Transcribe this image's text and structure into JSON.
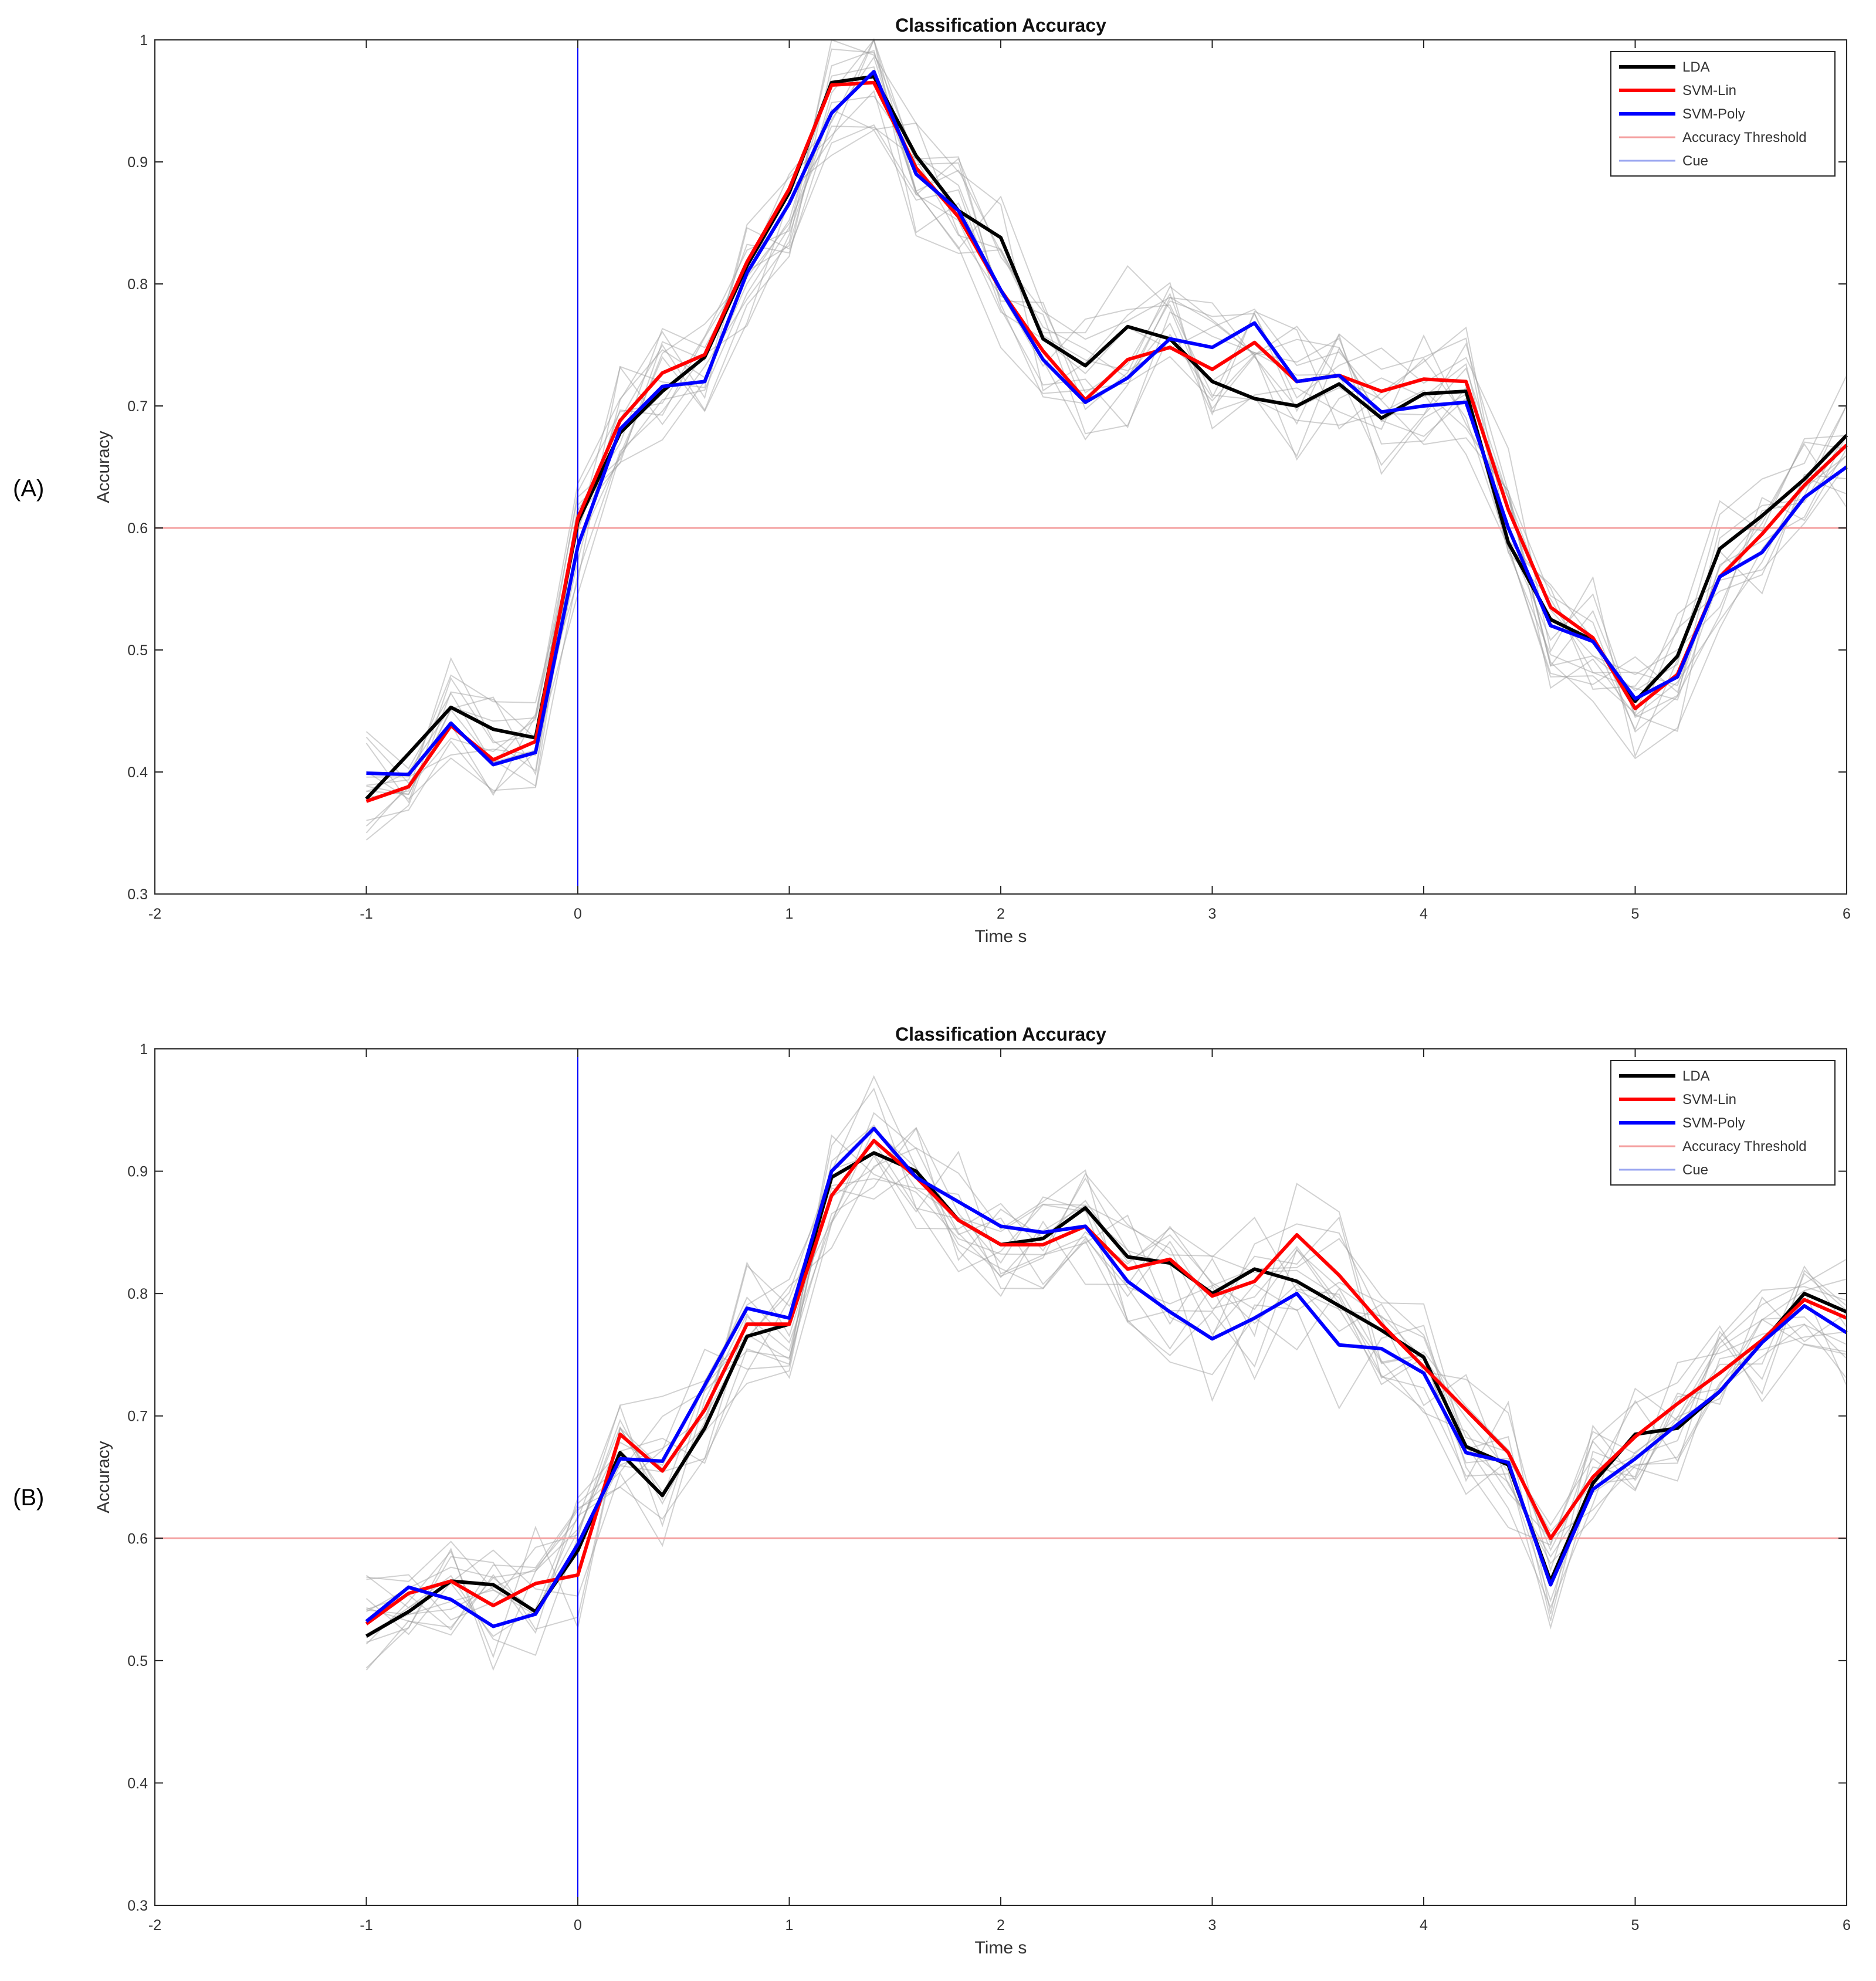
{
  "panels": [
    "(A)",
    "(B)"
  ],
  "chart_data": [
    {
      "type": "line",
      "title": "Classification Accuracy",
      "xlabel": "Time s",
      "ylabel": "Accuracy",
      "xlim": [
        -2,
        6
      ],
      "ylim": [
        0.3,
        1
      ],
      "xticks": [
        "-2",
        "-1",
        "0",
        "1",
        "2",
        "3",
        "4",
        "5",
        "6"
      ],
      "yticks": [
        "0.3",
        "0.4",
        "0.5",
        "0.6",
        "0.7",
        "0.8",
        "0.9",
        "1"
      ],
      "legend_position": "top-right",
      "x": [
        -1,
        -0.8,
        -0.6,
        -0.4,
        -0.2,
        0,
        0.2,
        0.4,
        0.6,
        0.8,
        1.0,
        1.2,
        1.4,
        1.6,
        1.8,
        2.0,
        2.2,
        2.4,
        2.6,
        2.8,
        3.0,
        3.2,
        3.4,
        3.6,
        3.8,
        4.0,
        4.2,
        4.4,
        4.6,
        4.8,
        5.0,
        5.2,
        5.4,
        5.6,
        5.8,
        6.0
      ],
      "series": [
        {
          "name": "LDA",
          "color": "#000000",
          "values": [
            0.378,
            0.415,
            0.453,
            0.435,
            0.428,
            0.605,
            0.678,
            0.712,
            0.74,
            0.815,
            0.875,
            0.965,
            0.97,
            0.905,
            0.86,
            0.838,
            0.755,
            0.733,
            0.765,
            0.755,
            0.72,
            0.706,
            0.7,
            0.718,
            0.69,
            0.71,
            0.712,
            0.588,
            0.525,
            0.508,
            0.458,
            0.495,
            0.583,
            0.61,
            0.64,
            0.676
          ]
        },
        {
          "name": "SVM-Lin",
          "color": "#ff0000",
          "values": [
            0.376,
            0.388,
            0.438,
            0.41,
            0.425,
            0.608,
            0.688,
            0.727,
            0.742,
            0.818,
            0.878,
            0.963,
            0.965,
            0.895,
            0.855,
            0.795,
            0.745,
            0.705,
            0.738,
            0.748,
            0.73,
            0.752,
            0.72,
            0.725,
            0.712,
            0.722,
            0.72,
            0.615,
            0.535,
            0.51,
            0.452,
            0.48,
            0.56,
            0.595,
            0.635,
            0.668
          ]
        },
        {
          "name": "SVM-Poly",
          "color": "#0000ff",
          "values": [
            0.399,
            0.398,
            0.44,
            0.406,
            0.416,
            0.585,
            0.681,
            0.716,
            0.72,
            0.809,
            0.866,
            0.94,
            0.974,
            0.89,
            0.86,
            0.795,
            0.738,
            0.703,
            0.723,
            0.755,
            0.748,
            0.768,
            0.72,
            0.725,
            0.695,
            0.7,
            0.703,
            0.6,
            0.52,
            0.507,
            0.46,
            0.478,
            0.56,
            0.58,
            0.625,
            0.65
          ]
        }
      ],
      "reference_lines": [
        {
          "name": "Accuracy Threshold",
          "orientation": "horizontal",
          "value": 0.6,
          "color": "#f4a0a0"
        },
        {
          "name": "Cue",
          "orientation": "vertical",
          "value": 0,
          "color": "#0000ff"
        }
      ],
      "legend": [
        "LDA",
        "SVM-Lin",
        "SVM-Poly",
        "Accuracy Threshold",
        "Cue"
      ],
      "background_traces": {
        "color": "#9a9a9a",
        "count": 14
      }
    },
    {
      "type": "line",
      "title": "Classification Accuracy",
      "xlabel": "Time s",
      "ylabel": "Accuracy",
      "xlim": [
        -2,
        6
      ],
      "ylim": [
        0.3,
        1
      ],
      "xticks": [
        "-2",
        "-1",
        "0",
        "1",
        "2",
        "3",
        "4",
        "5",
        "6"
      ],
      "yticks": [
        "0.3",
        "0.4",
        "0.5",
        "0.6",
        "0.7",
        "0.8",
        "0.9",
        "1"
      ],
      "legend_position": "top-right",
      "x": [
        -1,
        -0.8,
        -0.6,
        -0.4,
        -0.2,
        0,
        0.2,
        0.4,
        0.6,
        0.8,
        1.0,
        1.2,
        1.4,
        1.6,
        1.8,
        2.0,
        2.2,
        2.4,
        2.6,
        2.8,
        3.0,
        3.2,
        3.4,
        3.6,
        3.8,
        4.0,
        4.2,
        4.4,
        4.6,
        4.8,
        5.0,
        5.2,
        5.4,
        5.6,
        5.8,
        6.0
      ],
      "series": [
        {
          "name": "LDA",
          "color": "#000000",
          "values": [
            0.52,
            0.54,
            0.565,
            0.562,
            0.54,
            0.59,
            0.67,
            0.635,
            0.69,
            0.765,
            0.775,
            0.895,
            0.915,
            0.9,
            0.86,
            0.84,
            0.845,
            0.87,
            0.83,
            0.825,
            0.8,
            0.82,
            0.81,
            0.79,
            0.77,
            0.748,
            0.675,
            0.66,
            0.565,
            0.645,
            0.685,
            0.69,
            0.72,
            0.76,
            0.8,
            0.785
          ]
        },
        {
          "name": "SVM-Lin",
          "color": "#ff0000",
          "values": [
            0.53,
            0.555,
            0.565,
            0.545,
            0.563,
            0.57,
            0.685,
            0.655,
            0.705,
            0.775,
            0.775,
            0.88,
            0.925,
            0.895,
            0.86,
            0.84,
            0.84,
            0.855,
            0.82,
            0.828,
            0.798,
            0.81,
            0.848,
            0.815,
            0.775,
            0.74,
            0.705,
            0.67,
            0.6,
            0.65,
            0.683,
            0.71,
            0.735,
            0.762,
            0.795,
            0.78
          ]
        },
        {
          "name": "SVM-Poly",
          "color": "#0000ff",
          "values": [
            0.532,
            0.56,
            0.55,
            0.528,
            0.538,
            0.595,
            0.665,
            0.663,
            0.725,
            0.788,
            0.78,
            0.9,
            0.935,
            0.895,
            0.875,
            0.855,
            0.85,
            0.855,
            0.81,
            0.785,
            0.763,
            0.78,
            0.8,
            0.758,
            0.755,
            0.735,
            0.67,
            0.662,
            0.562,
            0.64,
            0.665,
            0.693,
            0.72,
            0.76,
            0.79,
            0.768
          ]
        }
      ],
      "reference_lines": [
        {
          "name": "Accuracy Threshold",
          "orientation": "horizontal",
          "value": 0.6,
          "color": "#f4a0a0"
        },
        {
          "name": "Cue",
          "orientation": "vertical",
          "value": 0,
          "color": "#0000ff"
        }
      ],
      "legend": [
        "LDA",
        "SVM-Lin",
        "SVM-Poly",
        "Accuracy Threshold",
        "Cue"
      ],
      "background_traces": {
        "color": "#9a9a9a",
        "count": 14
      }
    }
  ]
}
